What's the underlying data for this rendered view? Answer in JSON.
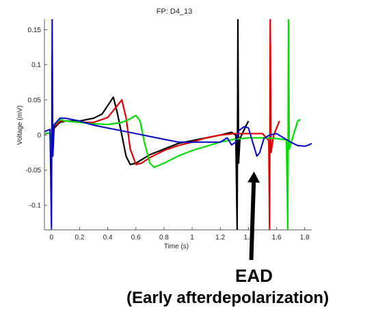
{
  "chart_data": {
    "type": "line",
    "title": "FP: D4_13",
    "xlabel": "Time (s)",
    "ylabel": "Voltage (mV)",
    "xlim": [
      -0.05,
      1.85
    ],
    "ylim": [
      -0.135,
      0.165
    ],
    "x_ticks": [
      0,
      0.2,
      0.4,
      0.6,
      0.8,
      1,
      1.2,
      1.4,
      1.6,
      1.8
    ],
    "x_tick_labels": [
      "0",
      "0.2",
      "0.4",
      "0.6",
      "0.8",
      "1",
      "1.2",
      "1.4",
      "1.6",
      "1.8"
    ],
    "y_ticks": [
      -0.1,
      -0.05,
      0,
      0.05,
      0.1,
      0.15
    ],
    "y_tick_labels": [
      "-0.1",
      "-0.05",
      "0",
      "0.05",
      "0.1",
      "0.15"
    ],
    "grid": false,
    "legend": "none",
    "series": [
      {
        "color": "#000000",
        "points": [
          [
            -0.05,
            0.002
          ],
          [
            -0.01,
            0.003
          ],
          [
            0.0,
            -0.01
          ],
          [
            0.02,
            0.01
          ],
          [
            0.06,
            0.018
          ],
          [
            0.1,
            0.02
          ],
          [
            0.2,
            0.02
          ],
          [
            0.3,
            0.024
          ],
          [
            0.36,
            0.03
          ],
          [
            0.4,
            0.042
          ],
          [
            0.44,
            0.054
          ],
          [
            0.47,
            0.03
          ],
          [
            0.5,
            0.0
          ],
          [
            0.53,
            -0.03
          ],
          [
            0.56,
            -0.042
          ],
          [
            0.6,
            -0.04
          ],
          [
            0.7,
            -0.028
          ],
          [
            0.8,
            -0.02
          ],
          [
            0.9,
            -0.012
          ],
          [
            1.0,
            -0.008
          ],
          [
            1.1,
            -0.004
          ],
          [
            1.2,
            0.0
          ],
          [
            1.28,
            0.004
          ],
          [
            1.31,
            0.0
          ],
          [
            1.32,
            -0.136
          ],
          [
            1.325,
            0.165
          ],
          [
            1.33,
            -0.04
          ],
          [
            1.34,
            -0.005
          ],
          [
            1.38,
            0.012
          ],
          [
            1.4,
            0.02
          ]
        ]
      },
      {
        "color": "#e00000",
        "points": [
          [
            -0.05,
            0.002
          ],
          [
            -0.01,
            0.003
          ],
          [
            0.0,
            -0.01
          ],
          [
            0.02,
            0.012
          ],
          [
            0.06,
            0.02
          ],
          [
            0.1,
            0.02
          ],
          [
            0.2,
            0.018
          ],
          [
            0.3,
            0.018
          ],
          [
            0.4,
            0.025
          ],
          [
            0.46,
            0.04
          ],
          [
            0.5,
            0.05
          ],
          [
            0.53,
            0.025
          ],
          [
            0.56,
            -0.02
          ],
          [
            0.6,
            -0.042
          ],
          [
            0.64,
            -0.04
          ],
          [
            0.7,
            -0.032
          ],
          [
            0.8,
            -0.022
          ],
          [
            0.9,
            -0.015
          ],
          [
            1.0,
            -0.01
          ],
          [
            1.1,
            -0.004
          ],
          [
            1.2,
            0.0
          ],
          [
            1.3,
            0.002
          ],
          [
            1.4,
            0.002
          ],
          [
            1.5,
            0.002
          ],
          [
            1.545,
            -0.008
          ],
          [
            1.55,
            -0.136
          ],
          [
            1.555,
            0.165
          ],
          [
            1.56,
            -0.025
          ],
          [
            1.58,
            0.0
          ],
          [
            1.62,
            0.02
          ]
        ]
      },
      {
        "color": "#00dd00",
        "points": [
          [
            -0.05,
            0.002
          ],
          [
            -0.01,
            0.003
          ],
          [
            0.0,
            -0.01
          ],
          [
            0.02,
            0.015
          ],
          [
            0.06,
            0.022
          ],
          [
            0.1,
            0.02
          ],
          [
            0.2,
            0.018
          ],
          [
            0.3,
            0.016
          ],
          [
            0.4,
            0.015
          ],
          [
            0.5,
            0.018
          ],
          [
            0.55,
            0.022
          ],
          [
            0.6,
            0.028
          ],
          [
            0.63,
            0.02
          ],
          [
            0.66,
            -0.01
          ],
          [
            0.7,
            -0.04
          ],
          [
            0.73,
            -0.046
          ],
          [
            0.8,
            -0.04
          ],
          [
            0.9,
            -0.03
          ],
          [
            1.0,
            -0.022
          ],
          [
            1.1,
            -0.016
          ],
          [
            1.2,
            -0.01
          ],
          [
            1.3,
            -0.006
          ],
          [
            1.4,
            -0.004
          ],
          [
            1.5,
            -0.004
          ],
          [
            1.6,
            -0.005
          ],
          [
            1.67,
            -0.007
          ],
          [
            1.68,
            -0.136
          ],
          [
            1.685,
            0.165
          ],
          [
            1.69,
            -0.02
          ],
          [
            1.72,
            0.0
          ],
          [
            1.75,
            0.02
          ],
          [
            1.77,
            0.022
          ]
        ]
      },
      {
        "color": "#0000cc",
        "points": [
          [
            -0.05,
            0.005
          ],
          [
            -0.01,
            0.008
          ],
          [
            0.0,
            -0.136
          ],
          [
            0.005,
            0.165
          ],
          [
            0.01,
            -0.03
          ],
          [
            0.02,
            0.015
          ],
          [
            0.06,
            0.024
          ],
          [
            0.1,
            0.024
          ],
          [
            0.2,
            0.02
          ],
          [
            0.3,
            0.014
          ],
          [
            0.4,
            0.01
          ],
          [
            0.5,
            0.006
          ],
          [
            0.6,
            0.002
          ],
          [
            0.7,
            -0.002
          ],
          [
            0.8,
            -0.006
          ],
          [
            0.9,
            -0.01
          ],
          [
            1.0,
            -0.01
          ],
          [
            1.1,
            -0.01
          ],
          [
            1.2,
            -0.01
          ],
          [
            1.25,
            -0.004
          ],
          [
            1.28,
            -0.014
          ],
          [
            1.31,
            -0.01
          ],
          [
            1.33,
            0.006
          ],
          [
            1.37,
            0.012
          ],
          [
            1.4,
            0.01
          ],
          [
            1.43,
            -0.01
          ],
          [
            1.46,
            -0.03
          ],
          [
            1.48,
            -0.025
          ],
          [
            1.51,
            -0.005
          ],
          [
            1.55,
            0.0
          ],
          [
            1.6,
            0.002
          ],
          [
            1.65,
            -0.004
          ],
          [
            1.7,
            -0.01
          ],
          [
            1.75,
            -0.015
          ],
          [
            1.8,
            -0.016
          ],
          [
            1.83,
            -0.014
          ],
          [
            1.85,
            -0.012
          ]
        ]
      }
    ],
    "annotations": {
      "arrow_tip": [
        1.44,
        -0.052
      ],
      "arrow_tail": [
        1.42,
        -0.13
      ],
      "label_line1": "EAD",
      "label_line2": "(Early afterdepolarization)"
    }
  }
}
